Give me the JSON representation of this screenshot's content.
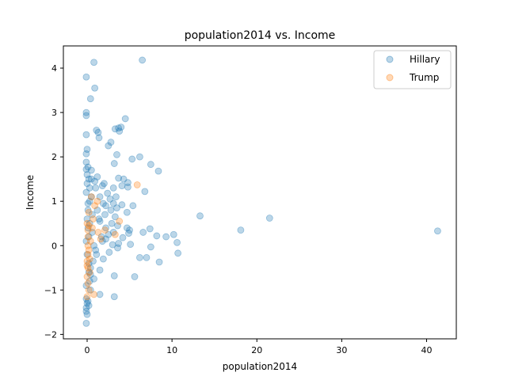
{
  "chart_data": {
    "type": "scatter",
    "title": "population2014 vs. Income",
    "xlabel": "population2014",
    "ylabel": "Income",
    "xlim": [
      -2.8,
      43.5
    ],
    "ylim": [
      -2.1,
      4.5
    ],
    "xticks": [
      0,
      10,
      20,
      30,
      40
    ],
    "yticks": [
      -2,
      -1,
      0,
      1,
      2,
      3,
      4
    ],
    "grid": false,
    "legend_position": "top-right",
    "marker_opacity": 0.3,
    "series": [
      {
        "name": "Hillary",
        "color": "#1f77b4",
        "points": [
          [
            -0.1,
            3.8
          ],
          [
            0.8,
            4.13
          ],
          [
            6.5,
            4.18
          ],
          [
            0.9,
            3.55
          ],
          [
            0.4,
            3.31
          ],
          [
            -0.1,
            3.0
          ],
          [
            -0.1,
            2.93
          ],
          [
            4.5,
            2.86
          ],
          [
            -0.1,
            2.5
          ],
          [
            1.1,
            2.6
          ],
          [
            1.3,
            2.55
          ],
          [
            3.3,
            2.63
          ],
          [
            3.7,
            2.65
          ],
          [
            4.0,
            2.67
          ],
          [
            3.8,
            2.58
          ],
          [
            1.4,
            2.43
          ],
          [
            2.8,
            2.33
          ],
          [
            2.5,
            2.25
          ],
          [
            0.0,
            2.17
          ],
          [
            -0.1,
            2.07
          ],
          [
            3.5,
            2.05
          ],
          [
            6.2,
            2.0
          ],
          [
            5.3,
            1.95
          ],
          [
            -0.1,
            1.88
          ],
          [
            3.2,
            1.85
          ],
          [
            7.5,
            1.83
          ],
          [
            0.1,
            1.77
          ],
          [
            -0.1,
            1.72
          ],
          [
            0.5,
            1.7
          ],
          [
            8.4,
            1.68
          ],
          [
            0.0,
            1.6
          ],
          [
            1.2,
            1.55
          ],
          [
            0.2,
            1.5
          ],
          [
            3.7,
            1.52
          ],
          [
            4.3,
            1.5
          ],
          [
            4.8,
            1.42
          ],
          [
            0.9,
            1.45
          ],
          [
            2.0,
            1.4
          ],
          [
            1.8,
            1.35
          ],
          [
            3.1,
            1.3
          ],
          [
            4.8,
            1.32
          ],
          [
            4.1,
            1.35
          ],
          [
            0.3,
            1.3
          ],
          [
            -0.1,
            1.2
          ],
          [
            0.5,
            1.1
          ],
          [
            1.5,
            1.1
          ],
          [
            2.4,
            1.18
          ],
          [
            3.4,
            1.1
          ],
          [
            2.7,
            1.05
          ],
          [
            6.8,
            1.22
          ],
          [
            0.3,
            1.0
          ],
          [
            0.1,
            0.95
          ],
          [
            1.9,
            0.95
          ],
          [
            2.2,
            0.9
          ],
          [
            3.1,
            0.95
          ],
          [
            4.1,
            0.92
          ],
          [
            5.4,
            0.9
          ],
          [
            3.5,
            0.85
          ],
          [
            2.8,
            0.8
          ],
          [
            1.2,
            0.8
          ],
          [
            4.7,
            0.75
          ],
          [
            0.6,
            0.7
          ],
          [
            2.1,
            0.7
          ],
          [
            3.3,
            0.65
          ],
          [
            13.3,
            0.67
          ],
          [
            21.5,
            0.62
          ],
          [
            1.5,
            0.55
          ],
          [
            2.9,
            0.5
          ],
          [
            0.3,
            0.5
          ],
          [
            3.6,
            0.45
          ],
          [
            4.7,
            0.4
          ],
          [
            5.0,
            0.35
          ],
          [
            7.4,
            0.38
          ],
          [
            18.1,
            0.35
          ],
          [
            41.3,
            0.33
          ],
          [
            6.6,
            0.3
          ],
          [
            3.1,
            0.3
          ],
          [
            4.9,
            0.28
          ],
          [
            2.5,
            0.25
          ],
          [
            10.2,
            0.25
          ],
          [
            9.3,
            0.2
          ],
          [
            8.2,
            0.22
          ],
          [
            4.2,
            0.18
          ],
          [
            1.7,
            0.2
          ],
          [
            2.2,
            0.15
          ],
          [
            10.6,
            0.07
          ],
          [
            3.7,
            0.05
          ],
          [
            5.1,
            0.03
          ],
          [
            0.8,
            0.0
          ],
          [
            3.0,
            0.02
          ],
          [
            7.5,
            -0.03
          ],
          [
            3.6,
            -0.05
          ],
          [
            10.7,
            -0.17
          ],
          [
            2.6,
            -0.15
          ],
          [
            1.1,
            -0.2
          ],
          [
            6.2,
            -0.27
          ],
          [
            7.0,
            -0.27
          ],
          [
            1.9,
            -0.3
          ],
          [
            0.7,
            -0.35
          ],
          [
            8.5,
            -0.37
          ],
          [
            0.4,
            -0.5
          ],
          [
            1.5,
            -0.55
          ],
          [
            0.2,
            -0.6
          ],
          [
            3.2,
            -0.68
          ],
          [
            5.6,
            -0.7
          ],
          [
            0.8,
            -0.75
          ],
          [
            0.3,
            -0.8
          ],
          [
            -0.1,
            -0.9
          ],
          [
            0.4,
            -1.0
          ],
          [
            1.5,
            -1.1
          ],
          [
            3.2,
            -1.15
          ],
          [
            -0.1,
            -1.2
          ],
          [
            0.0,
            -1.3
          ],
          [
            -0.1,
            -1.4
          ],
          [
            0.2,
            -1.35
          ],
          [
            -0.1,
            -1.48
          ],
          [
            0.0,
            -1.55
          ],
          [
            -0.1,
            -1.75
          ],
          [
            0.1,
            -1.25
          ],
          [
            0.0,
            0.6
          ],
          [
            0.1,
            0.4
          ],
          [
            0.2,
            0.2
          ],
          [
            -0.1,
            0.1
          ],
          [
            0.0,
            -0.2
          ],
          [
            0.2,
            -0.4
          ],
          [
            0.1,
            0.8
          ],
          [
            0.0,
            1.4
          ],
          [
            0.5,
            1.5
          ],
          [
            1.0,
            1.3
          ],
          [
            1.4,
            0.6
          ],
          [
            2.2,
            0.4
          ],
          [
            1.0,
            -0.1
          ],
          [
            1.8,
            0.1
          ],
          [
            0.6,
            0.3
          ],
          [
            0.4,
            -0.65
          ]
        ]
      },
      {
        "name": "Trump",
        "color": "#ff7f0e",
        "points": [
          [
            5.9,
            1.37
          ],
          [
            0.5,
            1.1
          ],
          [
            1.2,
            1.0
          ],
          [
            0.9,
            0.9
          ],
          [
            0.2,
            0.75
          ],
          [
            3.8,
            0.55
          ],
          [
            0.6,
            0.4
          ],
          [
            3.3,
            0.25
          ],
          [
            1.3,
            0.3
          ],
          [
            0.1,
            0.2
          ],
          [
            0.4,
            0.1
          ],
          [
            0.1,
            0.0
          ],
          [
            0.2,
            -0.1
          ],
          [
            0.1,
            -0.2
          ],
          [
            0.0,
            -0.35
          ],
          [
            0.1,
            -0.5
          ],
          [
            0.3,
            -0.6
          ],
          [
            0.0,
            -0.7
          ],
          [
            0.1,
            -0.85
          ],
          [
            0.2,
            -1.0
          ],
          [
            0.8,
            -1.1
          ],
          [
            0.0,
            -1.15
          ],
          [
            1.6,
            0.15
          ],
          [
            2.1,
            0.35
          ],
          [
            0.7,
            0.6
          ],
          [
            0.0,
            0.5
          ],
          [
            0.1,
            0.35
          ],
          [
            0.3,
            -0.3
          ],
          [
            0.0,
            -0.45
          ],
          [
            0.2,
            0.45
          ]
        ]
      }
    ]
  }
}
